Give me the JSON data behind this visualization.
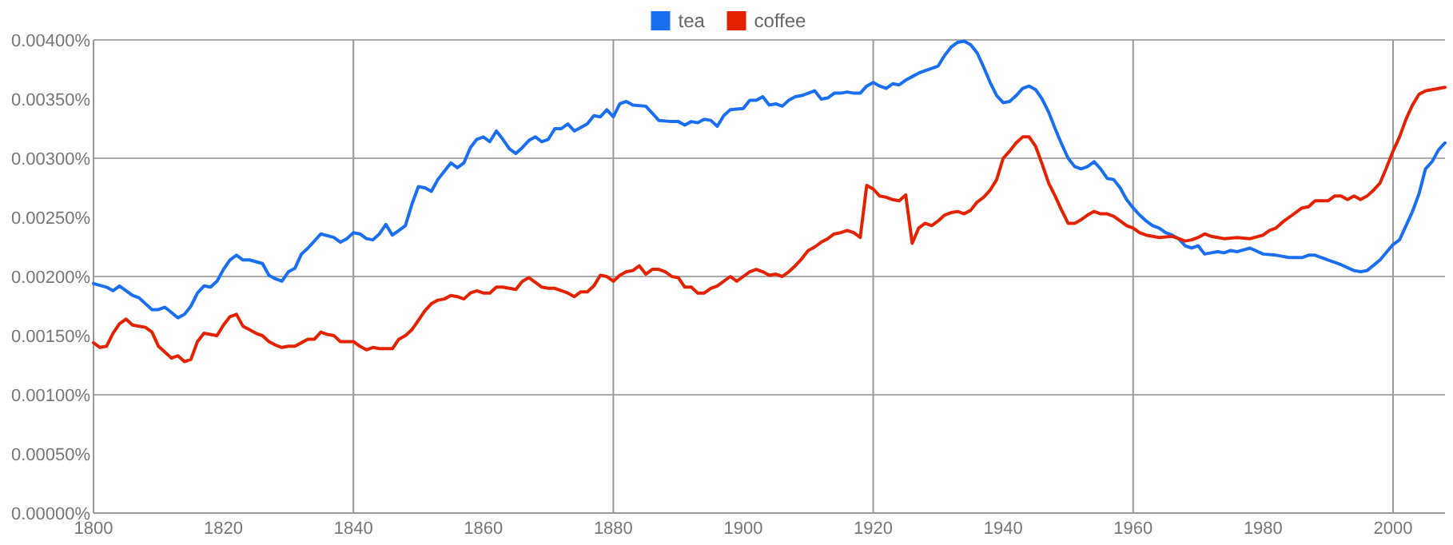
{
  "chart_data": {
    "type": "line",
    "legend": "top",
    "grid": true,
    "xlim": [
      1800,
      2008
    ],
    "xticks": [
      1800,
      1820,
      1840,
      1860,
      1880,
      1900,
      1920,
      1940,
      1960,
      1980,
      2000
    ],
    "ylim": [
      0,
      0.004
    ],
    "yticks": [
      {
        "value": 0,
        "label": "0.00000%"
      },
      {
        "value": 0.0005,
        "label": "0.00050%"
      },
      {
        "value": 0.001,
        "label": "0.00100%"
      },
      {
        "value": 0.0015,
        "label": "0.00150%"
      },
      {
        "value": 0.002,
        "label": "0.00200%"
      },
      {
        "value": 0.0025,
        "label": "0.00250%"
      },
      {
        "value": 0.003,
        "label": "0.00300%"
      },
      {
        "value": 0.0035,
        "label": "0.00350%"
      },
      {
        "value": 0.004,
        "label": "0.00400%"
      }
    ],
    "series": [
      {
        "name": "tea",
        "color": "#1a6ff0",
        "x": [
          1800,
          1802,
          1803,
          1804,
          1806,
          1807,
          1809,
          1810,
          1811,
          1813,
          1814,
          1815,
          1816,
          1817,
          1818,
          1819,
          1820,
          1821,
          1822,
          1823,
          1824,
          1826,
          1827,
          1828,
          1829,
          1830,
          1831,
          1832,
          1833,
          1835,
          1837,
          1838,
          1839,
          1840,
          1841,
          1842,
          1843,
          1844,
          1845,
          1846,
          1847,
          1848,
          1849,
          1850,
          1851,
          1852,
          1853,
          1854,
          1855,
          1856,
          1857,
          1858,
          1859,
          1860,
          1861,
          1862,
          1863,
          1864,
          1865,
          1866,
          1867,
          1868,
          1869,
          1870,
          1871,
          1872,
          1873,
          1874,
          1875,
          1876,
          1877,
          1878,
          1879,
          1880,
          1881,
          1882,
          1883,
          1885,
          1887,
          1889,
          1890,
          1891,
          1892,
          1893,
          1894,
          1895,
          1896,
          1897,
          1898,
          1900,
          1901,
          1902,
          1903,
          1904,
          1905,
          1906,
          1907,
          1908,
          1909,
          1910,
          1911,
          1912,
          1913,
          1914,
          1915,
          1916,
          1917,
          1918,
          1919,
          1920,
          1921,
          1922,
          1923,
          1924,
          1925,
          1926,
          1927,
          1928,
          1929,
          1930,
          1931,
          1932,
          1933,
          1934,
          1935,
          1936,
          1937,
          1938,
          1939,
          1940,
          1941,
          1942,
          1943,
          1944,
          1945,
          1946,
          1947,
          1948,
          1949,
          1950,
          1951,
          1952,
          1953,
          1954,
          1955,
          1956,
          1957,
          1958,
          1959,
          1960,
          1961,
          1962,
          1963,
          1964,
          1965,
          1966,
          1967,
          1968,
          1969,
          1970,
          1971,
          1972,
          1973,
          1974,
          1975,
          1976,
          1978,
          1980,
          1982,
          1984,
          1986,
          1987,
          1988,
          1990,
          1992,
          1994,
          1995,
          1996,
          1998,
          2000,
          2001,
          2002,
          2003,
          2004,
          2005,
          2006,
          2007,
          2008
        ],
        "values": [
          0.00194,
          0.00191,
          0.00188,
          0.00192,
          0.00184,
          0.00182,
          0.00172,
          0.00172,
          0.00174,
          0.00165,
          0.00168,
          0.00175,
          0.00186,
          0.00192,
          0.00191,
          0.00196,
          0.00206,
          0.00214,
          0.00218,
          0.00214,
          0.00214,
          0.00211,
          0.00201,
          0.00198,
          0.00196,
          0.00204,
          0.00207,
          0.00219,
          0.00224,
          0.00236,
          0.00233,
          0.00229,
          0.00232,
          0.00237,
          0.00236,
          0.00232,
          0.00231,
          0.00236,
          0.00244,
          0.00235,
          0.00239,
          0.00243,
          0.00261,
          0.00276,
          0.00275,
          0.00272,
          0.00282,
          0.00289,
          0.00296,
          0.00292,
          0.00296,
          0.00309,
          0.00316,
          0.00318,
          0.00314,
          0.00323,
          0.00316,
          0.00308,
          0.00304,
          0.00309,
          0.00315,
          0.00318,
          0.00314,
          0.00316,
          0.00325,
          0.00325,
          0.00329,
          0.00323,
          0.00326,
          0.00329,
          0.00336,
          0.00335,
          0.00341,
          0.00335,
          0.00346,
          0.00348,
          0.00345,
          0.00344,
          0.00332,
          0.00331,
          0.00331,
          0.00328,
          0.00331,
          0.0033,
          0.00333,
          0.00332,
          0.00327,
          0.00336,
          0.00341,
          0.00342,
          0.00349,
          0.00349,
          0.00352,
          0.00345,
          0.00346,
          0.00344,
          0.00349,
          0.00352,
          0.00353,
          0.00355,
          0.00357,
          0.0035,
          0.00351,
          0.00355,
          0.00355,
          0.00356,
          0.00355,
          0.00355,
          0.00361,
          0.00364,
          0.00361,
          0.00359,
          0.00363,
          0.00362,
          0.00366,
          0.00369,
          0.00372,
          0.00374,
          0.00376,
          0.00378,
          0.00387,
          0.00394,
          0.00398,
          0.00399,
          0.00396,
          0.00389,
          0.00377,
          0.00364,
          0.00353,
          0.00347,
          0.00348,
          0.00353,
          0.00359,
          0.00361,
          0.00358,
          0.0035,
          0.00339,
          0.00325,
          0.00312,
          0.003,
          0.00293,
          0.00291,
          0.00293,
          0.00297,
          0.00291,
          0.00283,
          0.00282,
          0.00275,
          0.00265,
          0.00258,
          0.00252,
          0.00247,
          0.00243,
          0.00241,
          0.00237,
          0.00235,
          0.00232,
          0.00226,
          0.00224,
          0.00226,
          0.00219,
          0.0022,
          0.00221,
          0.0022,
          0.00222,
          0.00221,
          0.00224,
          0.00219,
          0.00218,
          0.00216,
          0.00216,
          0.00218,
          0.00218,
          0.00214,
          0.0021,
          0.00205,
          0.00204,
          0.00205,
          0.00214,
          0.00227,
          0.00231,
          0.00243,
          0.00255,
          0.0027,
          0.00291,
          0.00297,
          0.00307,
          0.00313
        ]
      },
      {
        "name": "coffee",
        "color": "#e52200",
        "x": [
          1800,
          1801,
          1802,
          1803,
          1804,
          1805,
          1806,
          1807,
          1808,
          1809,
          1810,
          1811,
          1812,
          1813,
          1814,
          1815,
          1816,
          1817,
          1819,
          1820,
          1821,
          1822,
          1823,
          1824,
          1825,
          1826,
          1827,
          1828,
          1829,
          1830,
          1831,
          1832,
          1833,
          1834,
          1835,
          1836,
          1837,
          1838,
          1839,
          1840,
          1841,
          1842,
          1843,
          1844,
          1846,
          1847,
          1848,
          1849,
          1850,
          1851,
          1852,
          1853,
          1854,
          1855,
          1856,
          1857,
          1858,
          1859,
          1860,
          1861,
          1862,
          1863,
          1865,
          1866,
          1867,
          1868,
          1869,
          1870,
          1871,
          1873,
          1874,
          1875,
          1876,
          1877,
          1878,
          1879,
          1880,
          1881,
          1882,
          1883,
          1884,
          1885,
          1886,
          1887,
          1888,
          1889,
          1890,
          1891,
          1892,
          1893,
          1894,
          1895,
          1896,
          1898,
          1899,
          1900,
          1901,
          1902,
          1903,
          1904,
          1905,
          1906,
          1907,
          1908,
          1909,
          1910,
          1911,
          1912,
          1913,
          1914,
          1915,
          1916,
          1917,
          1918,
          1919,
          1920,
          1921,
          1922,
          1923,
          1924,
          1925,
          1926,
          1927,
          1928,
          1929,
          1930,
          1931,
          1932,
          1933,
          1934,
          1935,
          1936,
          1937,
          1938,
          1939,
          1940,
          1941,
          1942,
          1943,
          1944,
          1945,
          1946,
          1947,
          1948,
          1949,
          1950,
          1951,
          1952,
          1953,
          1954,
          1955,
          1956,
          1957,
          1958,
          1959,
          1960,
          1961,
          1962,
          1964,
          1966,
          1968,
          1969,
          1970,
          1971,
          1972,
          1974,
          1976,
          1978,
          1980,
          1981,
          1982,
          1983,
          1984,
          1985,
          1986,
          1987,
          1988,
          1990,
          1991,
          1992,
          1993,
          1994,
          1995,
          1996,
          1997,
          1998,
          1999,
          2000,
          2001,
          2002,
          2003,
          2004,
          2005,
          2006,
          2007,
          2008
        ],
        "values": [
          0.00144,
          0.0014,
          0.00141,
          0.00152,
          0.0016,
          0.00164,
          0.00159,
          0.00158,
          0.00157,
          0.00153,
          0.00141,
          0.00136,
          0.00131,
          0.00133,
          0.00128,
          0.0013,
          0.00145,
          0.00152,
          0.0015,
          0.00159,
          0.00166,
          0.00168,
          0.00158,
          0.00155,
          0.00152,
          0.0015,
          0.00145,
          0.00142,
          0.0014,
          0.00141,
          0.00141,
          0.00144,
          0.00147,
          0.00147,
          0.00153,
          0.00151,
          0.0015,
          0.00145,
          0.00145,
          0.00145,
          0.00141,
          0.00138,
          0.0014,
          0.00139,
          0.00139,
          0.00147,
          0.0015,
          0.00155,
          0.00163,
          0.00171,
          0.00177,
          0.0018,
          0.00181,
          0.00184,
          0.00183,
          0.00181,
          0.00186,
          0.00188,
          0.00186,
          0.00186,
          0.00191,
          0.00191,
          0.00189,
          0.00196,
          0.00199,
          0.00195,
          0.00191,
          0.0019,
          0.0019,
          0.00186,
          0.00183,
          0.00187,
          0.00187,
          0.00192,
          0.00201,
          0.002,
          0.00196,
          0.00201,
          0.00204,
          0.00205,
          0.00209,
          0.00202,
          0.00206,
          0.00206,
          0.00204,
          0.002,
          0.00199,
          0.00191,
          0.00191,
          0.00186,
          0.00186,
          0.0019,
          0.00192,
          0.002,
          0.00196,
          0.002,
          0.00204,
          0.00206,
          0.00204,
          0.00201,
          0.00202,
          0.002,
          0.00204,
          0.00209,
          0.00215,
          0.00222,
          0.00225,
          0.00229,
          0.00232,
          0.00236,
          0.00237,
          0.00239,
          0.00237,
          0.00233,
          0.00277,
          0.00274,
          0.00268,
          0.00267,
          0.00265,
          0.00264,
          0.00269,
          0.00228,
          0.00241,
          0.00245,
          0.00243,
          0.00247,
          0.00252,
          0.00254,
          0.00255,
          0.00253,
          0.00256,
          0.00263,
          0.00267,
          0.00273,
          0.00282,
          0.003,
          0.00306,
          0.00313,
          0.00318,
          0.00318,
          0.0031,
          0.00295,
          0.00279,
          0.00268,
          0.00256,
          0.00245,
          0.00245,
          0.00248,
          0.00252,
          0.00255,
          0.00253,
          0.00253,
          0.00251,
          0.00247,
          0.00243,
          0.00241,
          0.00237,
          0.00235,
          0.00233,
          0.00234,
          0.0023,
          0.00231,
          0.00233,
          0.00236,
          0.00234,
          0.00232,
          0.00233,
          0.00232,
          0.00235,
          0.00239,
          0.00241,
          0.00246,
          0.0025,
          0.00254,
          0.00258,
          0.00259,
          0.00264,
          0.00264,
          0.00268,
          0.00268,
          0.00265,
          0.00268,
          0.00265,
          0.00268,
          0.00273,
          0.00279,
          0.00292,
          0.00306,
          0.00318,
          0.00333,
          0.00345,
          0.00354,
          0.00357,
          0.00358,
          0.00359,
          0.0036
        ]
      }
    ]
  }
}
